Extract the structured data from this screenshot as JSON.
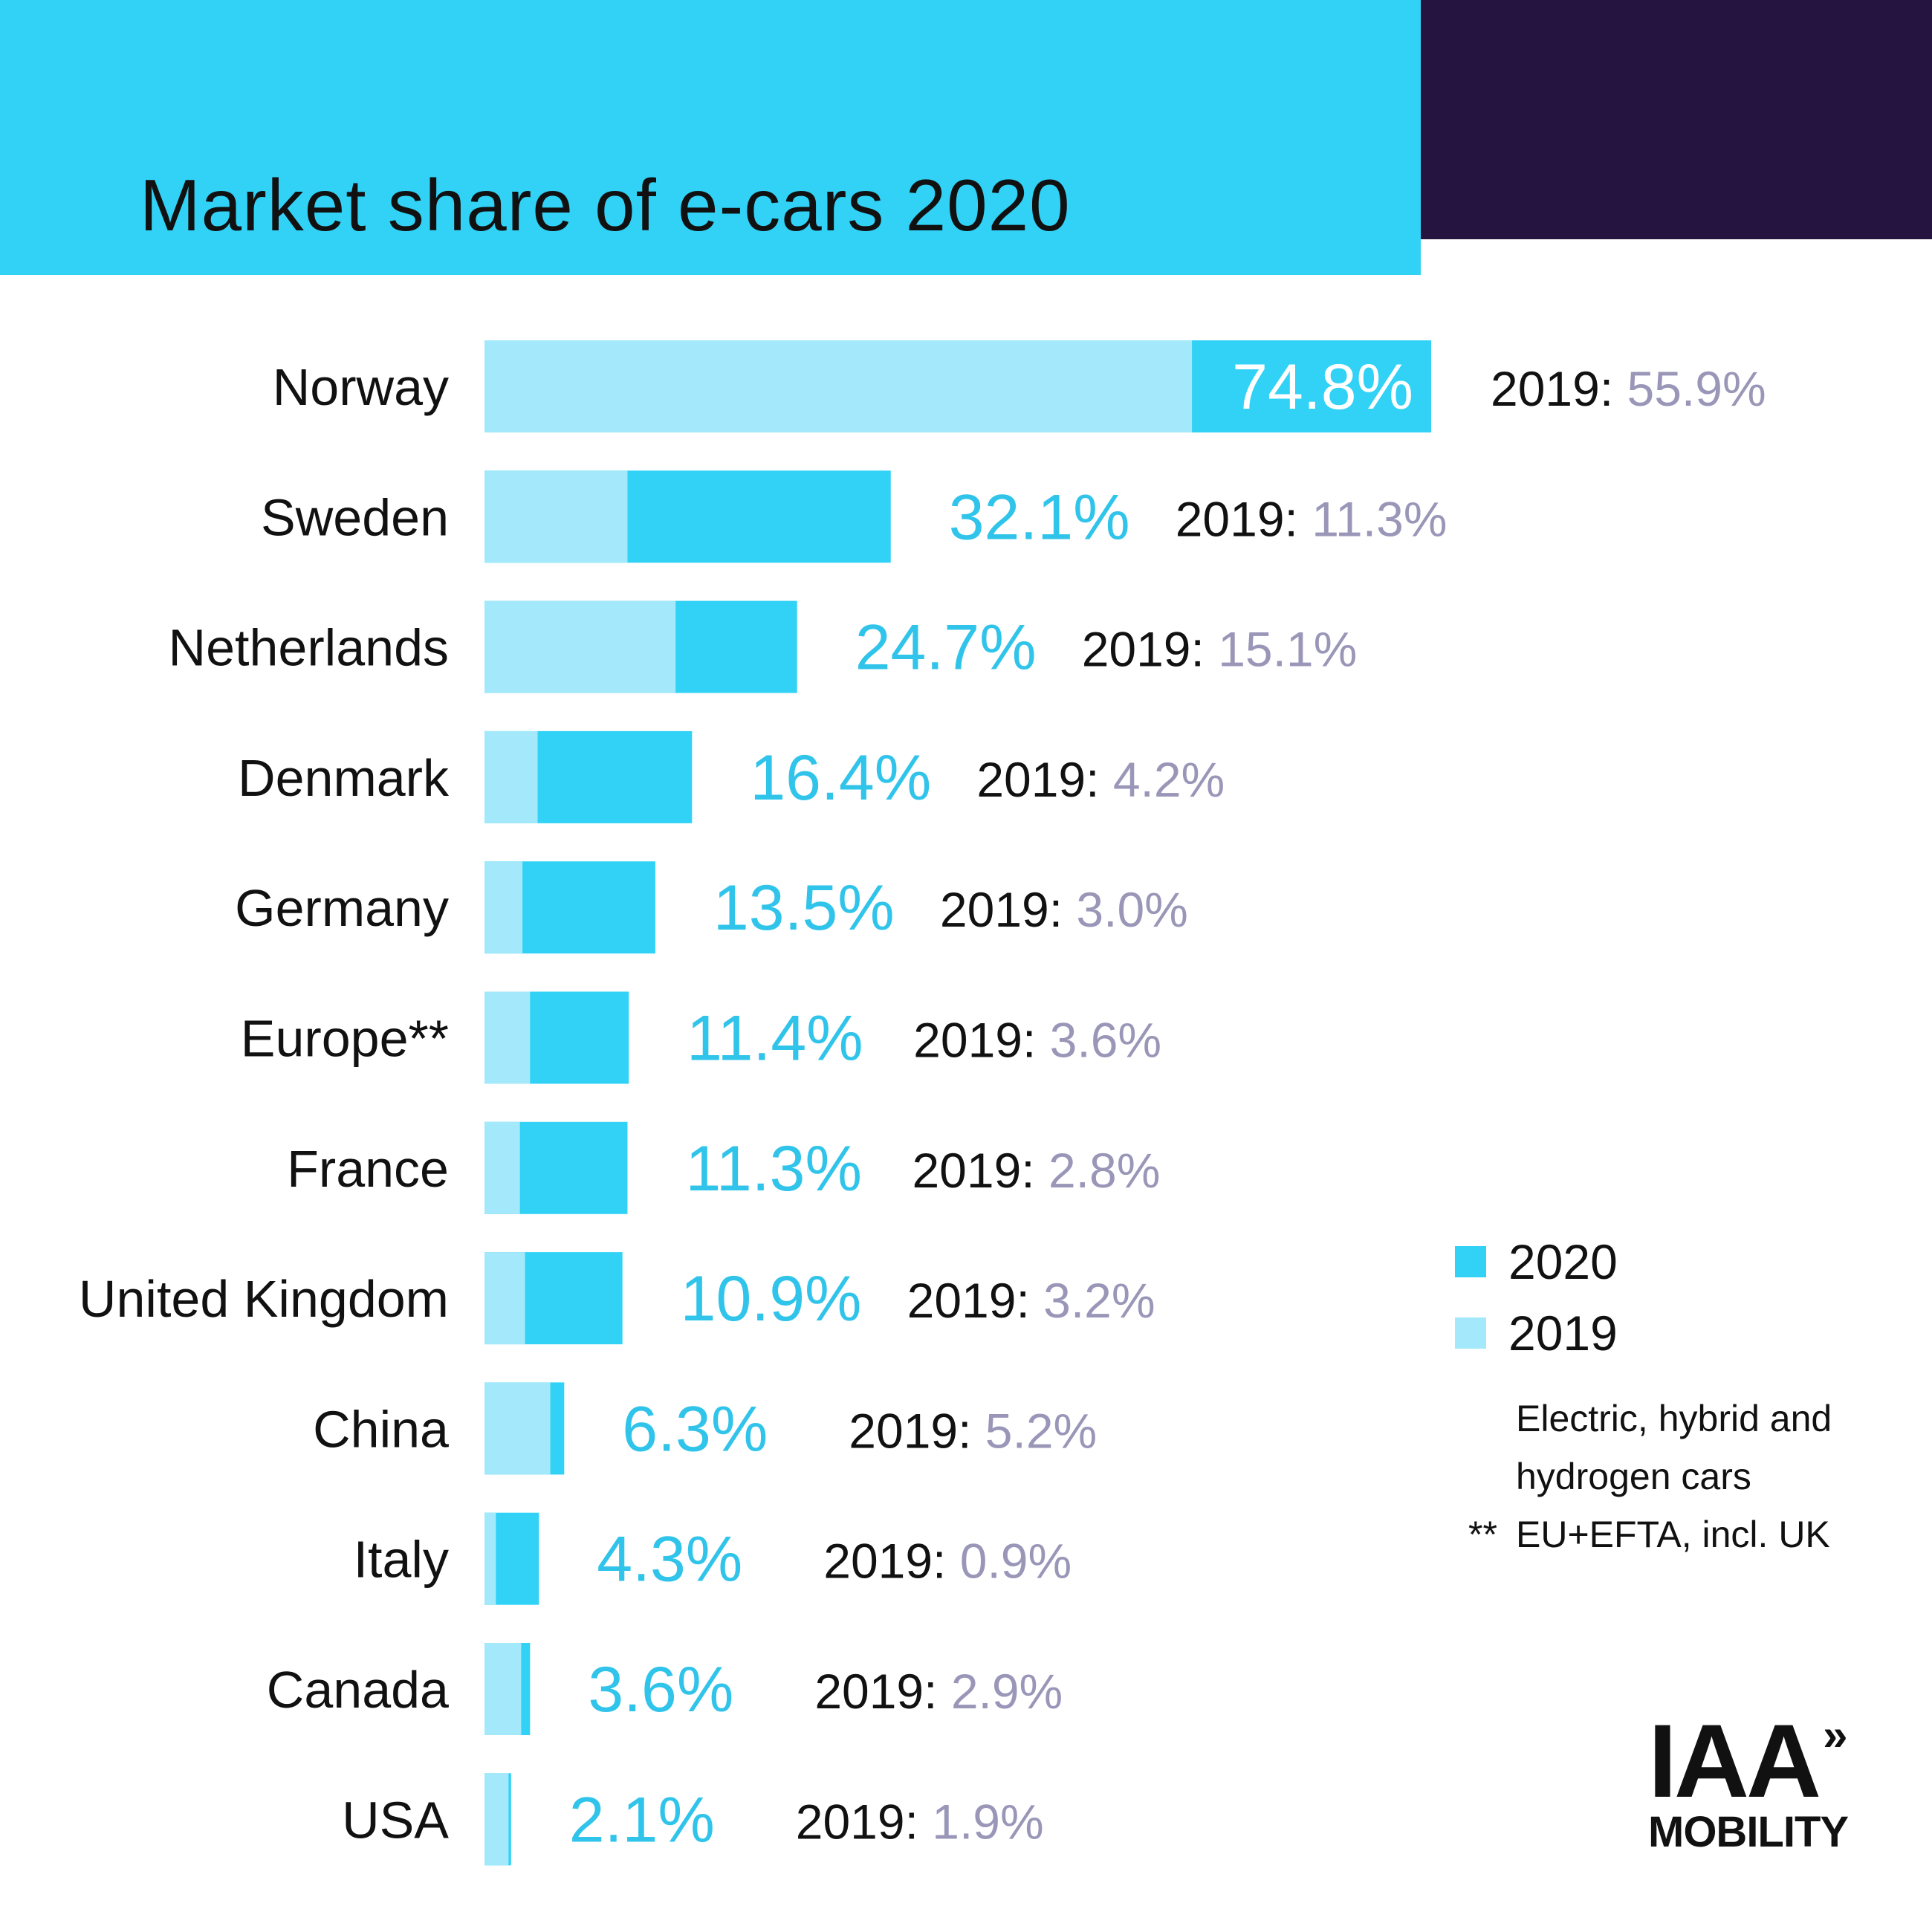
{
  "title": "Market share of e-cars 2020",
  "colors": {
    "header_bg": "#31d2f6",
    "header_dark": "#261440",
    "bar_2020": "#31d2f6",
    "bar_2019": "#a4e9fb",
    "value_2020_text": "#31c4ea",
    "value_2019_text": "#9a96b8",
    "text": "#111111"
  },
  "legend": [
    {
      "label": "2020",
      "color": "#31d2f6"
    },
    {
      "label": "2019",
      "color": "#a4e9fb"
    }
  ],
  "footnotes": {
    "line1": "Electric, hybrid and",
    "line2": "hydrogen cars",
    "mark": "**",
    "line3": "EU+EFTA, incl. UK"
  },
  "logo": {
    "main": "IAA",
    "chevron": "»",
    "sub": "MOBILITY"
  },
  "chart_data": {
    "type": "bar",
    "orientation": "horizontal",
    "title": "Market share of e-cars 2020",
    "categories": [
      "Norway",
      "Sweden",
      "Netherlands",
      "Denmark",
      "Germany",
      "Europe**",
      "France",
      "United Kingdom",
      "China",
      "Italy",
      "Canada",
      "USA"
    ],
    "series": [
      {
        "name": "2020",
        "values": [
          74.8,
          32.1,
          24.7,
          16.4,
          13.5,
          11.4,
          11.3,
          10.9,
          6.3,
          4.3,
          3.6,
          2.1
        ],
        "labels": [
          "74.8%",
          "32.1%",
          "24.7%",
          "16.4%",
          "13.5%",
          "11.4%",
          "11.3%",
          "10.9%",
          "6.3%",
          "4.3%",
          "3.6%",
          "2.1%"
        ]
      },
      {
        "name": "2019",
        "values": [
          55.9,
          11.3,
          15.1,
          4.2,
          3.0,
          3.6,
          2.8,
          3.2,
          5.2,
          0.9,
          2.9,
          1.9
        ],
        "labels": [
          "55.9%",
          "11.3%",
          "15.1%",
          "4.2%",
          "3.0%",
          "3.6%",
          "2.8%",
          "3.2%",
          "5.2%",
          "0.9%",
          "2.9%",
          "1.9%"
        ]
      }
    ],
    "prev_year_prefix": "2019:",
    "xlim": [
      0,
      74.8
    ],
    "grid": false,
    "legend_position": "right"
  }
}
